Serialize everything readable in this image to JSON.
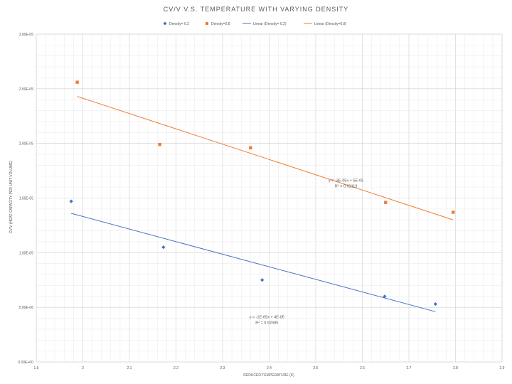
{
  "chart_data": {
    "type": "scatter",
    "title": "CV/V V.S. TEMPERATURE WITH VARYING DENSITY",
    "xlabel": "REDUCED TEMPERATURE (K)",
    "ylabel": "CV/V (HEAT CAPACITY PER UNIT VOLUME)",
    "xlim": [
      1.9,
      2.9
    ],
    "ylim": [
      0,
      3e-05
    ],
    "x_ticks": [
      "1.9",
      "2",
      "2.1",
      "2.2",
      "2.3",
      "2.4",
      "2.5",
      "2.6",
      "2.7",
      "2.8",
      "2.9"
    ],
    "y_ticks": [
      "0.00E+00",
      "5.00E-06",
      "1.00E-05",
      "1.50E-05",
      "2.00E-05",
      "2.50E-05",
      "3.00E-05"
    ],
    "grid": true,
    "legend_position": "top",
    "legend": [
      {
        "label": "Density= 0.2",
        "kind": "diamond",
        "color": "#4472C4"
      },
      {
        "label": "Density=0.8",
        "kind": "square",
        "color": "#ED7D31"
      },
      {
        "label": "Linear  (Density= 0.2)",
        "kind": "line",
        "color": "#4472C4"
      },
      {
        "label": "Linear  (Density=0.8)",
        "kind": "line",
        "color": "#ED7D31"
      }
    ],
    "series": [
      {
        "name": "Density= 0.2",
        "marker": "diamond",
        "color": "#4472C4",
        "points": [
          [
            1.975,
            1.47e-05
          ],
          [
            2.173,
            1.05e-05
          ],
          [
            2.385,
            7.5e-06
          ],
          [
            2.648,
            6e-06
          ],
          [
            2.757,
            5.3e-06
          ]
        ],
        "trendline": {
          "from": [
            1.975,
            1.36e-05
          ],
          "to": [
            2.757,
            4.6e-06
          ]
        },
        "equation": "y = -1E-05x + 4E-05",
        "r2": "R² = 0.92985",
        "label_at": [
          2.395,
          4e-06
        ]
      },
      {
        "name": "Density=0.8",
        "marker": "square",
        "color": "#ED7D31",
        "points": [
          [
            1.988,
            2.56e-05
          ],
          [
            2.165,
            1.99e-05
          ],
          [
            2.36,
            1.96e-05
          ],
          [
            2.65,
            1.46e-05
          ],
          [
            2.795,
            1.37e-05
          ]
        ],
        "trendline": {
          "from": [
            1.988,
            2.43e-05
          ],
          "to": [
            2.795,
            1.3e-05
          ]
        },
        "equation": "y = -3E-05x + 5E-05",
        "r2": "R² = 0.93113",
        "label_at": [
          2.565,
          1.65e-05
        ]
      }
    ]
  }
}
